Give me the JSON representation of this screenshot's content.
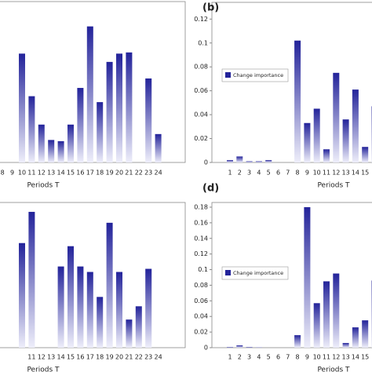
{
  "chart_data": [
    {
      "type": "bar",
      "xlabel": "Periods T",
      "categories": [
        "8",
        "9",
        "10",
        "11",
        "12",
        "13",
        "14",
        "15",
        "16",
        "17",
        "18",
        "19",
        "20",
        "21",
        "22",
        "23",
        "24"
      ],
      "values": [
        0,
        0,
        0.092,
        0.056,
        0.032,
        0.019,
        0.018,
        0.032,
        0.063,
        0.115,
        0.051,
        0.085,
        0.092,
        0.093,
        0,
        0.071,
        0.024
      ],
      "color": "#23239a",
      "ylim": [
        0,
        0.136
      ]
    },
    {
      "type": "bar",
      "title": "(b)",
      "xlabel": "Periods T",
      "categories": [
        "1",
        "2",
        "3",
        "4",
        "5",
        "6",
        "7",
        "8",
        "9",
        "10",
        "11",
        "12",
        "13",
        "14",
        "15",
        null
      ],
      "series": [
        {
          "name": "Change importance",
          "color": "#23239a",
          "values": [
            0.002,
            0.005,
            0.001,
            0.001,
            0.002,
            0,
            0,
            0.102,
            0.033,
            0.045,
            0.011,
            0.075,
            0.036,
            0.061,
            0.013,
            0.047
          ]
        }
      ],
      "ylim": [
        0,
        0.134
      ],
      "yticks": [
        0,
        0.02,
        0.04,
        0.06,
        0.08,
        0.1,
        0.12
      ],
      "legend": "upper-left"
    },
    {
      "type": "bar",
      "xlabel": "Periods T",
      "categories": [
        null,
        "11",
        "12",
        "13",
        "14",
        "15",
        "16",
        "17",
        "18",
        "19",
        "20",
        "21",
        "22",
        "23",
        "24"
      ],
      "values": [
        0.134,
        0.174,
        0,
        0,
        0.104,
        0.13,
        0.104,
        0.097,
        0.065,
        0.16,
        0.097,
        0.036,
        0.053,
        0.101,
        0
      ],
      "color": "#23239a",
      "ylim": [
        0,
        0.186
      ]
    },
    {
      "type": "bar",
      "title": "(d)",
      "xlabel": "Periods T",
      "categories": [
        "1",
        "2",
        "3",
        "4",
        "5",
        "6",
        "7",
        "8",
        "9",
        "10",
        "11",
        "12",
        "13",
        "14",
        "15",
        null
      ],
      "series": [
        {
          "name": "Change importance",
          "color": "#23239a",
          "values": [
            0.001,
            0.003,
            0.001,
            0.0005,
            0,
            0,
            0,
            0.016,
            0.18,
            0.057,
            0.085,
            0.095,
            0.006,
            0.026,
            0.035,
            0.086
          ]
        }
      ],
      "ylim": [
        0,
        0.186
      ],
      "yticks": [
        0,
        0.02,
        0.04,
        0.06,
        0.08,
        0.1,
        0.12,
        0.14,
        0.16,
        0.18
      ],
      "legend": "upper-left"
    }
  ]
}
